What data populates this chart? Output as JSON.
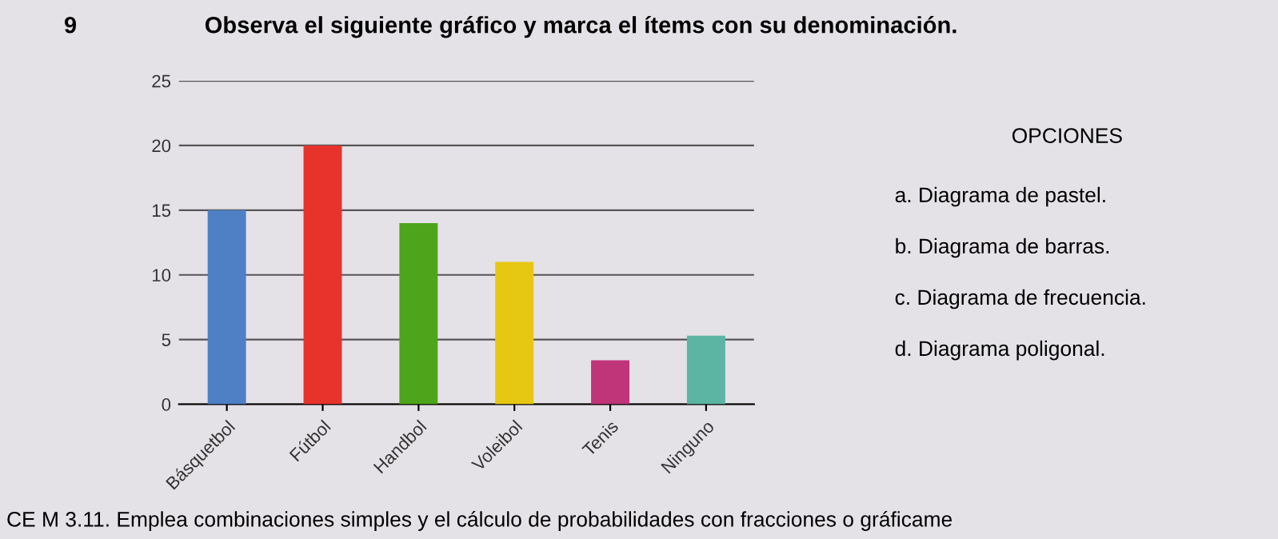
{
  "chart_data": {
    "type": "bar",
    "title": "Observa el siguiente gráfico y marca el ítems con su denominación.",
    "categories": [
      "Básquetbol",
      "Fútbol",
      "Handbol",
      "Voleibol",
      "Tenis",
      "Ninguno"
    ],
    "values": [
      15,
      20,
      14,
      11,
      3.4,
      5.3
    ],
    "colors": [
      "#4f7fc4",
      "#e8322c",
      "#4ea41a",
      "#e6c812",
      "#c0347a",
      "#5bb5a2"
    ],
    "ylim": [
      0,
      25
    ],
    "yticks": [
      0,
      5,
      10,
      15,
      20,
      25
    ],
    "grid": "y",
    "annotations": [
      "9",
      "OPCIONES",
      "a. Diagrama de pastel.",
      "b. Diagrama de barras.",
      "c. Diagrama de frecuencia.",
      "d. Diagrama poligonal.",
      "CE M 3.11. Emplea combinaciones simples y el cálculo de probabilidades con fracciones o gráficame"
    ]
  }
}
